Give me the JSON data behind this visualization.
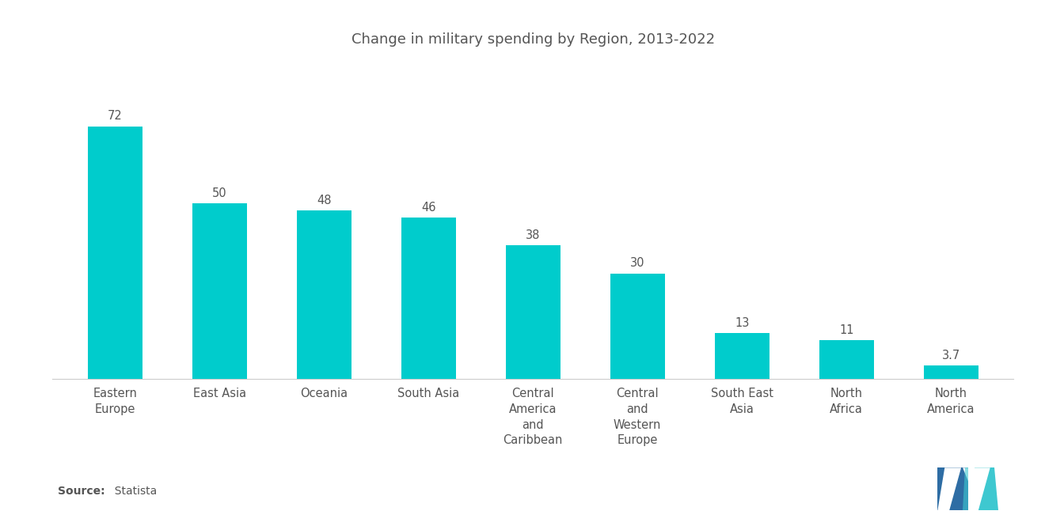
{
  "title": "Change in military spending by Region, 2013-2022",
  "categories": [
    "Eastern\nEurope",
    "East Asia",
    "Oceania",
    "South Asia",
    "Central\nAmerica\nand\nCaribbean",
    "Central\nand\nWestern\nEurope",
    "South East\nAsia",
    "North\nAfrica",
    "North\nAmerica"
  ],
  "values": [
    72,
    50,
    48,
    46,
    38,
    30,
    13,
    11,
    3.7
  ],
  "bar_color": "#00CCCC",
  "background_color": "#ffffff",
  "title_fontsize": 13,
  "label_fontsize": 10.5,
  "value_fontsize": 10.5,
  "source_bold": "Source:",
  "source_normal": "  Statista",
  "ylim": [
    0,
    90
  ],
  "logo_blue": "#2E6DA4",
  "logo_teal": "#3EC8D0"
}
